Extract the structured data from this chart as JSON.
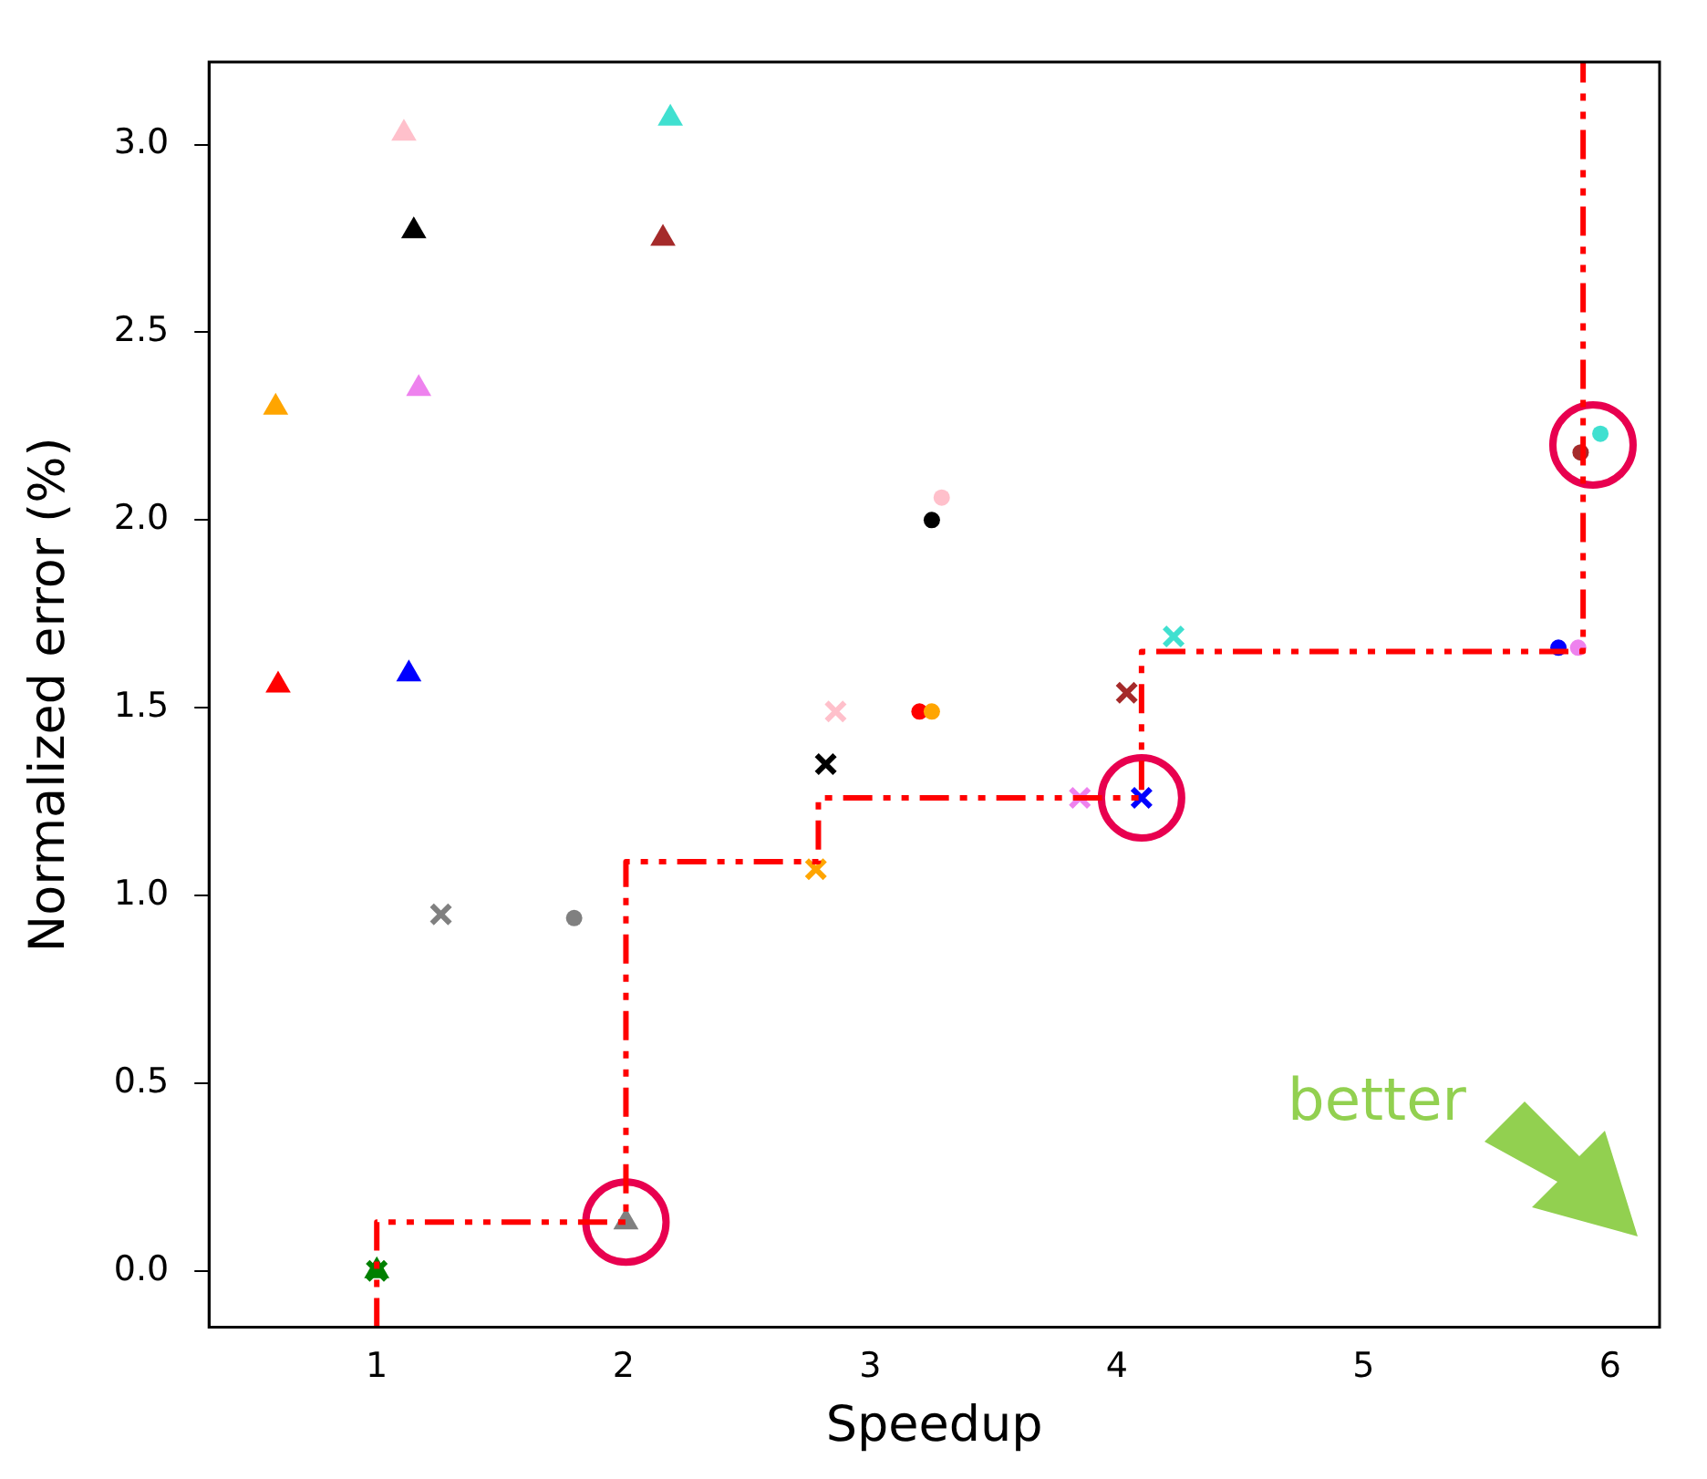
{
  "chart_data": {
    "type": "scatter",
    "xlabel": "Speedup",
    "ylabel": "Normalized error (%)",
    "xlim": [
      0.32,
      6.2
    ],
    "ylim": [
      -0.15,
      3.22
    ],
    "xticks": [
      1,
      2,
      3,
      4,
      5,
      6
    ],
    "yticks": [
      {
        "value": 0,
        "label": "0.0"
      },
      0.5,
      {
        "value": 1,
        "label": "1.0"
      },
      1.5,
      {
        "value": 2,
        "label": "2.0"
      },
      2.5,
      {
        "value": 3,
        "label": "3.0"
      }
    ],
    "grid": false,
    "legend": false,
    "annotations": [
      "better"
    ],
    "series": [
      {
        "type": "step",
        "color": "#ff0000",
        "line_style": "dashdot",
        "marker": "none",
        "x": [
          1,
          1,
          2.01,
          2.79,
          4.1,
          5.89,
          5.89
        ],
        "values": [
          -0.15,
          0.13,
          1.09,
          1.26,
          1.65,
          2.18,
          3.22
        ]
      },
      {
        "marker": "triangle",
        "x": [
          0.6,
          0.59,
          1.11,
          1.15,
          1.17,
          1.13,
          2.19,
          2.16,
          2.01,
          1.0
        ],
        "values": [
          1.56,
          2.3,
          3.03,
          2.77,
          2.35,
          1.59,
          3.07,
          2.75,
          0.13,
          0.0
        ],
        "colors": [
          "#ff0000",
          "#ffa500",
          "#ffc0cb",
          "#000000",
          "#ee82ee",
          "#0000ff",
          "#40e0d0",
          "#a52a2a",
          "#808080",
          "#008000"
        ]
      },
      {
        "marker": "cross",
        "x": [
          1.26,
          1.0,
          2.78,
          2.82,
          2.86,
          3.85,
          4.1,
          4.04,
          4.23
        ],
        "values": [
          0.95,
          0.0,
          1.07,
          1.35,
          1.49,
          1.26,
          1.26,
          1.54,
          1.69
        ],
        "colors": [
          "#808080",
          "#008000",
          "#ffa500",
          "#000000",
          "#ffc0cb",
          "#ee82ee",
          "#0000ff",
          "#a52a2a",
          "#40e0d0"
        ]
      },
      {
        "marker": "circle",
        "x": [
          1.8,
          3.29,
          3.25,
          3.2,
          3.25,
          5.79,
          5.87,
          5.96,
          5.88
        ],
        "values": [
          0.94,
          2.06,
          2.0,
          1.49,
          1.49,
          1.66,
          1.66,
          2.23,
          2.18
        ],
        "colors": [
          "#808080",
          "#ffc0cb",
          "#000000",
          "#ff0000",
          "#ffa500",
          "#0000ff",
          "#ee82ee",
          "#40e0d0",
          "#a52a2a"
        ]
      },
      {
        "marker": "circle",
        "color": "#e8004f",
        "x": [
          2.01,
          4.1,
          5.93
        ],
        "values": [
          0.13,
          1.26,
          2.2
        ]
      }
    ]
  }
}
